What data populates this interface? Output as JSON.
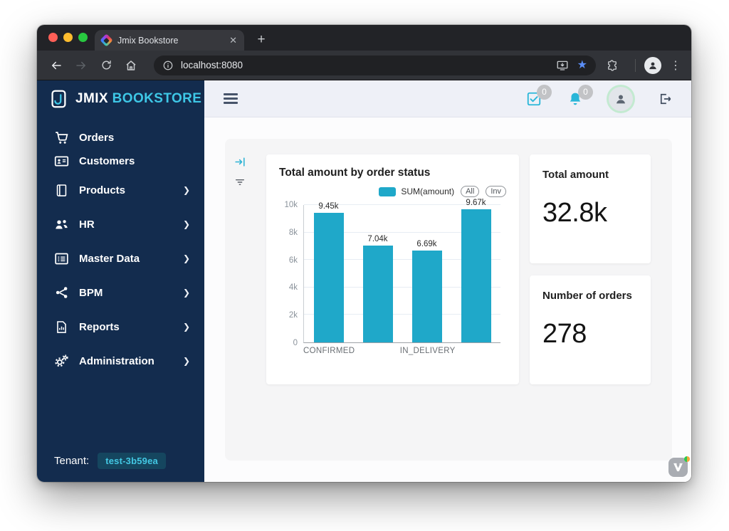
{
  "colors": {
    "accent_cyan": "#3EC7E6",
    "bar_color": "#1FA8C9",
    "sidebar_bg": "#132C4E"
  },
  "browser": {
    "tab_title": "Jmix Bookstore",
    "close_tab_label": "✕",
    "new_tab_label": "+",
    "url": "localhost:8080",
    "menu_dots": "⋮"
  },
  "appbar": {
    "tasks_badge": "0",
    "notifications_badge": "0"
  },
  "sidebar": {
    "logo_primary": "JMIX",
    "logo_secondary": "BOOKSTORE",
    "items": [
      {
        "label": "Orders",
        "icon": "cart-icon",
        "has_chevron": false
      },
      {
        "label": "Customers",
        "icon": "id-card-icon",
        "has_chevron": false
      },
      {
        "label": "Products",
        "icon": "book-icon",
        "has_chevron": true
      },
      {
        "label": "HR",
        "icon": "users-icon",
        "has_chevron": true
      },
      {
        "label": "Master Data",
        "icon": "table-list-icon",
        "has_chevron": true
      },
      {
        "label": "BPM",
        "icon": "share-nodes-icon",
        "has_chevron": true
      },
      {
        "label": "Reports",
        "icon": "report-document-icon",
        "has_chevron": true
      },
      {
        "label": "Administration",
        "icon": "gears-icon",
        "has_chevron": true
      }
    ],
    "chevron_glyph": "❯",
    "tenant_label": "Tenant:",
    "tenant_value": "test-3b59ea"
  },
  "dashboard": {
    "chart_title": "Total amount by order status",
    "legend_series": "SUM(amount)",
    "legend_buttons": [
      "All",
      "Inv"
    ],
    "total_amount": {
      "title": "Total amount",
      "value": "32.8k"
    },
    "number_of_orders": {
      "title": "Number of orders",
      "value": "278"
    }
  },
  "chart_data": {
    "type": "bar",
    "title": "Total amount by order status",
    "categories": [
      "CONFIRMED",
      "",
      "IN_DELIVERY",
      ""
    ],
    "series": [
      {
        "name": "SUM(amount)",
        "values": [
          9450,
          7040,
          6690,
          9670
        ],
        "value_labels": [
          "9.45k",
          "7.04k",
          "6.69k",
          "9.67k"
        ]
      }
    ],
    "ylim": [
      0,
      10000
    ],
    "yticks": [
      0,
      2000,
      4000,
      6000,
      8000,
      10000
    ],
    "ytick_labels": [
      "0",
      "2k",
      "4k",
      "6k",
      "8k",
      "10k"
    ],
    "bar_color": "#1FA8C9",
    "grid": true,
    "legend_position": "top-right",
    "legend_buttons": [
      "All",
      "Inv"
    ]
  }
}
